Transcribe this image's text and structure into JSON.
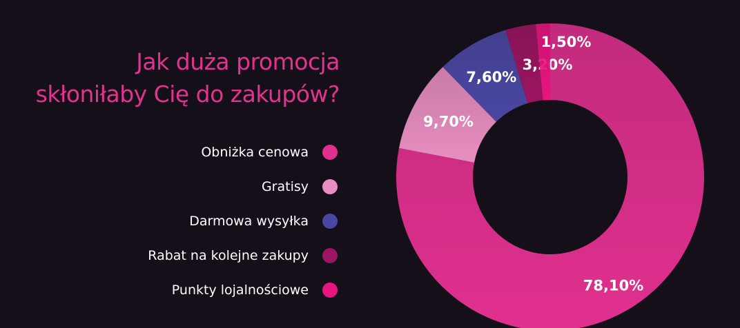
{
  "chart_data": {
    "type": "pie",
    "title_lines": [
      "Jak duża promocja",
      "skłoniłaby Cię do zakupów?"
    ],
    "categories": [
      "Obniżka cenowa",
      "Gratisy",
      "Darmowa wysyłka",
      "Rabat na kolejne zakupy",
      "Punkty lojalnościowe"
    ],
    "values": [
      78.1,
      9.7,
      7.6,
      3.2,
      1.5
    ],
    "value_labels": [
      "78,10%",
      "9,70%",
      "7,60%",
      "3,20%",
      "1,50%"
    ],
    "colors": [
      "#e0308e",
      "#e88ec0",
      "#4a47a3",
      "#9b1560",
      "#e8157f"
    ],
    "donut": true,
    "legend_position": "left"
  }
}
